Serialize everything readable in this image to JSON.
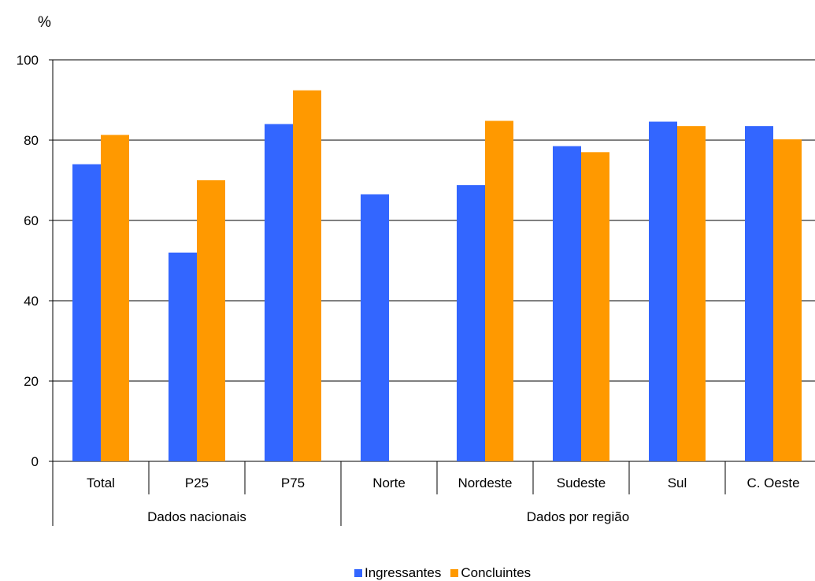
{
  "chart_data": {
    "type": "bar",
    "ylabel": "%",
    "ylim": [
      0,
      100
    ],
    "yticks": [
      0,
      20,
      40,
      60,
      80,
      100
    ],
    "grid": true,
    "legend_position": "bottom",
    "categories": [
      "Total",
      "P25",
      "P75",
      "Norte",
      "Nordeste",
      "Sudeste",
      "Sul",
      "C. Oeste"
    ],
    "groups": [
      {
        "label": "Dados nacionais",
        "categories": [
          "Total",
          "P25",
          "P75"
        ]
      },
      {
        "label": "Dados por região",
        "categories": [
          "Norte",
          "Nordeste",
          "Sudeste",
          "Sul",
          "C. Oeste"
        ]
      }
    ],
    "series": [
      {
        "name": "Ingressantes",
        "color": "#3366FF",
        "values": [
          74,
          52,
          84,
          66.5,
          68.8,
          78.5,
          84.6,
          83.5
        ]
      },
      {
        "name": "Concluintes",
        "color": "#FF9900",
        "values": [
          81.3,
          70,
          92.4,
          null,
          84.8,
          77,
          83.5,
          80.2
        ]
      }
    ]
  }
}
